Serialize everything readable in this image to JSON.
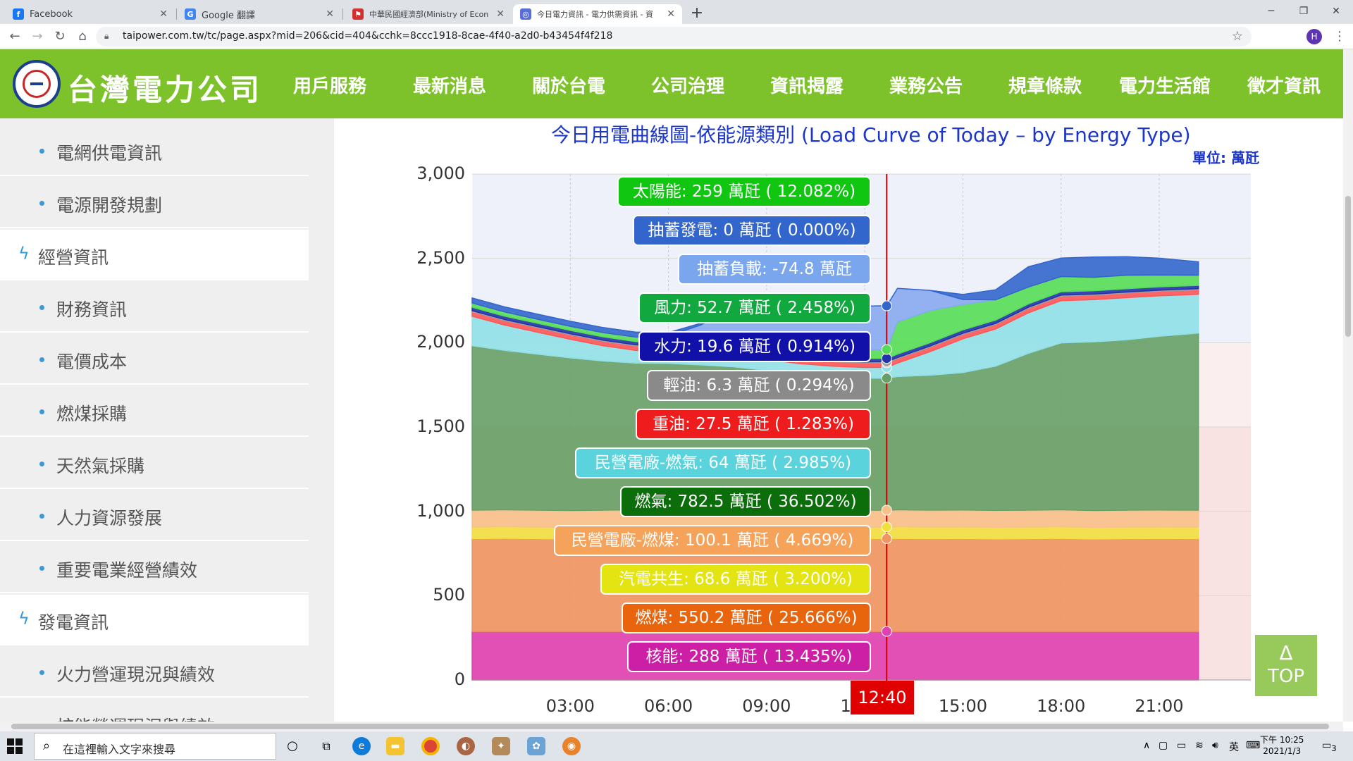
{
  "browser": {
    "tabs": [
      {
        "title": "Facebook",
        "favicon": "facebook-icon",
        "color": "#1877f2",
        "glyph": "f"
      },
      {
        "title": "Google 翻譯",
        "favicon": "google-translate-icon",
        "color": "#4285f4",
        "glyph": "G"
      },
      {
        "title": "中華民國經濟部(Ministry of Econ",
        "favicon": "moea-icon",
        "color": "#d32f2f",
        "glyph": "⚑"
      },
      {
        "title": "今日電力資訊 - 電力供需資訊 - 資",
        "favicon": "taipower-icon",
        "color": "#5a6fd6",
        "glyph": "◎"
      }
    ],
    "new_tab": "+",
    "url": "taipower.com.tw/tc/page.aspx?mid=206&cid=404&cchk=8ccc1918-8cae-4f40-a2d0-b43454f4f218",
    "profile_initial": "H"
  },
  "site": {
    "logo_text": "台灣電力公司",
    "nav": [
      "用戶服務",
      "最新消息",
      "關於台電",
      "公司治理",
      "資訊揭露",
      "業務公告",
      "規章條款",
      "電力生活館",
      "徵才資訊"
    ]
  },
  "sidebar": {
    "entries": [
      {
        "type": "item",
        "label": "電網供電資訊"
      },
      {
        "type": "item",
        "label": "電源開發規劃"
      },
      {
        "type": "category",
        "label": "經營資訊"
      },
      {
        "type": "item",
        "label": "財務資訊"
      },
      {
        "type": "item",
        "label": "電價成本"
      },
      {
        "type": "item",
        "label": "燃煤採購"
      },
      {
        "type": "item",
        "label": "天然氣採購"
      },
      {
        "type": "item",
        "label": "人力資源發展"
      },
      {
        "type": "item",
        "label": "重要電業經營績效"
      },
      {
        "type": "category",
        "label": "發電資訊"
      },
      {
        "type": "item",
        "label": "火力營運現況與績效"
      },
      {
        "type": "item",
        "label": "核能營運現況與績效"
      }
    ]
  },
  "chart": {
    "title": "今日用電曲線圖-依能源類別 (Load Curve of Today – by Energy Type)",
    "unit": "單位: 萬瓩",
    "current_time": "12:40",
    "top_button": {
      "arrow": "Δ",
      "label": "TOP"
    }
  },
  "chart_data": {
    "type": "area",
    "stacked": true,
    "x_tick_labels": [
      "03:00",
      "06:00",
      "09:00",
      "12:00",
      "15:00",
      "18:00",
      "21:00"
    ],
    "ylim": [
      0,
      3000
    ],
    "y_ticks": [
      0,
      500,
      1000,
      1500,
      2000,
      2500,
      3000
    ],
    "y_tick_labels": [
      "0",
      "500",
      "1,000",
      "1,500",
      "2,000",
      "2,500",
      "3,000"
    ],
    "x_hours": [
      0,
      1,
      2,
      3,
      4,
      5,
      6,
      7,
      8,
      9,
      10,
      11,
      12,
      12.67,
      13,
      14,
      15,
      16,
      17,
      18,
      19,
      20,
      21,
      22.2
    ],
    "series": [
      {
        "name": "核能",
        "color": "#e040b0",
        "values": [
          288,
          288,
          288,
          288,
          288,
          288,
          288,
          288,
          288,
          288,
          288,
          288,
          288,
          288,
          288,
          288,
          288,
          288,
          288,
          288,
          288,
          288,
          288,
          288
        ]
      },
      {
        "name": "燃煤",
        "color": "#ee9560",
        "values": [
          550,
          552,
          550,
          548,
          550,
          552,
          550,
          551,
          550,
          549,
          550,
          550,
          550,
          550.2,
          552,
          550,
          551,
          549,
          550,
          552,
          548,
          550,
          551,
          550
        ]
      },
      {
        "name": "汽電共生",
        "color": "#f2e040",
        "values": [
          69,
          69,
          69,
          69,
          69,
          69,
          69,
          69,
          69,
          69,
          69,
          69,
          69,
          68.6,
          69,
          69,
          69,
          69,
          69,
          69,
          69,
          69,
          69,
          69
        ]
      },
      {
        "name": "民營電廠-燃煤",
        "color": "#f8c08a",
        "values": [
          100,
          100,
          100,
          100,
          100,
          100,
          100,
          100,
          100,
          100,
          100,
          100,
          100,
          100.1,
          100,
          100,
          100,
          100,
          100,
          100,
          100,
          100,
          100,
          100
        ]
      },
      {
        "name": "燃氣",
        "color": "#66a066",
        "values": [
          975,
          945,
          925,
          905,
          885,
          870,
          870,
          860,
          850,
          830,
          805,
          790,
          782,
          782.5,
          790,
          800,
          815,
          855,
          930,
          990,
          1000,
          1010,
          1030,
          1050
        ]
      },
      {
        "name": "民營電廠-燃氣",
        "color": "#90e0e8",
        "values": [
          175,
          150,
          130,
          110,
          90,
          75,
          68,
          65,
          64,
          64,
          64,
          64,
          64,
          64,
          80,
          140,
          200,
          220,
          240,
          250,
          250,
          250,
          240,
          230
        ]
      },
      {
        "name": "重油",
        "color": "#ff5555",
        "values": [
          27,
          27,
          27,
          27,
          27,
          27,
          27,
          27,
          27,
          27,
          27,
          27,
          27,
          27.5,
          27,
          27,
          27,
          27,
          27,
          27,
          27,
          27,
          27,
          27
        ]
      },
      {
        "name": "輕油",
        "color": "#a0a0a0",
        "values": [
          6,
          6,
          6,
          6,
          6,
          6,
          6,
          6,
          6,
          6,
          6,
          6,
          6,
          6.3,
          6,
          6,
          6,
          6,
          6,
          6,
          6,
          6,
          6,
          6
        ]
      },
      {
        "name": "水力",
        "color": "#2233aa",
        "values": [
          20,
          20,
          20,
          20,
          20,
          20,
          20,
          20,
          20,
          20,
          20,
          20,
          20,
          19.6,
          20,
          20,
          20,
          20,
          20,
          20,
          20,
          20,
          20,
          20
        ]
      },
      {
        "name": "風力",
        "color": "#55dd55",
        "values": [
          25,
          25,
          24,
          24,
          25,
          26,
          30,
          40,
          55,
          62,
          58,
          55,
          52,
          52.7,
          190,
          190,
          150,
          120,
          100,
          90,
          80,
          80,
          70,
          60
        ]
      },
      {
        "name": "太陽能",
        "color": "#88aaf0",
        "values": [
          0,
          0,
          0,
          0,
          0,
          0,
          12,
          80,
          180,
          240,
          255,
          259,
          259,
          259,
          200,
          120,
          30,
          0,
          0,
          0,
          0,
          0,
          0,
          0
        ]
      },
      {
        "name": "抽蓄發電",
        "color": "#3366cc",
        "values": [
          30,
          30,
          30,
          30,
          30,
          30,
          20,
          10,
          0,
          0,
          0,
          0,
          0,
          0,
          0,
          0,
          30,
          60,
          120,
          110,
          120,
          110,
          100,
          80
        ]
      }
    ],
    "tooltip": [
      {
        "label": "太陽能: 259 萬瓩 ( 12.082%)",
        "color": "#11c611"
      },
      {
        "label": "抽蓄發電: 0 萬瓩 ( 0.000%)",
        "color": "#3366cc"
      },
      {
        "label": "抽蓄負載: -74.8 萬瓩",
        "color": "#7aa6ee"
      },
      {
        "label": "風力: 52.7 萬瓩 ( 2.458%)",
        "color": "#12a840"
      },
      {
        "label": "水力: 19.6 萬瓩 ( 0.914%)",
        "color": "#1111aa"
      },
      {
        "label": "輕油: 6.3 萬瓩 ( 0.294%)",
        "color": "#8a8a8a"
      },
      {
        "label": "重油: 27.5 萬瓩 ( 1.283%)",
        "color": "#ee1c1c"
      },
      {
        "label": "民營電廠-燃氣: 64 萬瓩 ( 2.985%)",
        "color": "#5bd3dc"
      },
      {
        "label": "燃氣: 782.5 萬瓩 ( 36.502%)",
        "color": "#0b6e0b"
      },
      {
        "label": "民營電廠-燃煤: 100.1 萬瓩 ( 4.669%)",
        "color": "#f5a25a"
      },
      {
        "label": "汽電共生: 68.6 萬瓩 ( 3.200%)",
        "color": "#e4e412"
      },
      {
        "label": "燃煤: 550.2 萬瓩 ( 25.666%)",
        "color": "#e8650e"
      },
      {
        "label": "核能: 288 萬瓩 ( 13.435%)",
        "color": "#cc1fa6"
      }
    ]
  },
  "taskbar": {
    "search_placeholder": "在這裡輸入文字來搜尋",
    "ime": "英",
    "time": "下午 10:25",
    "date": "2021/1/3",
    "notification_count": "3"
  }
}
